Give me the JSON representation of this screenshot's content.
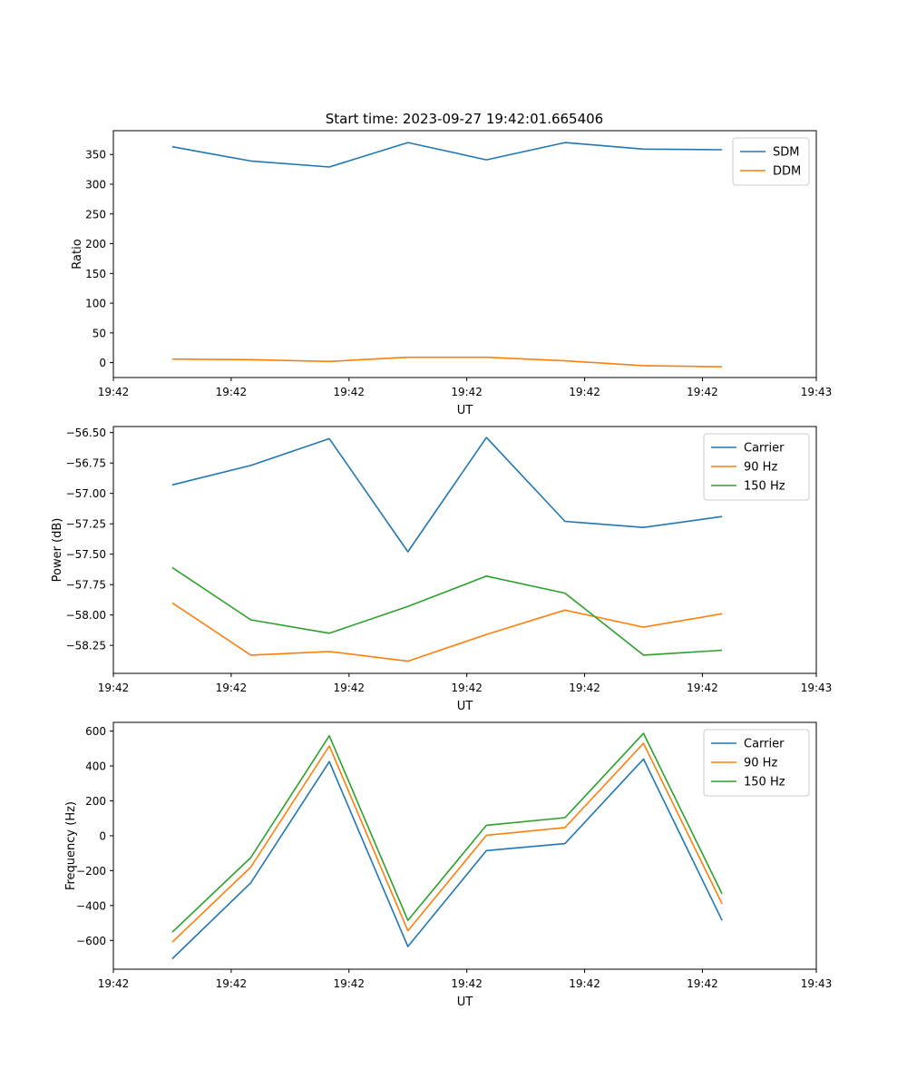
{
  "figure_title": "Start time: 2023-09-27 19:42:01.665406",
  "colors": {
    "blue": "#1f77b4",
    "orange": "#ff7f0e",
    "green": "#2ca02c"
  },
  "chart_data": [
    {
      "type": "line",
      "xlabel": "UT",
      "ylabel": "Ratio",
      "x": [
        0,
        1,
        2,
        3,
        4,
        5,
        6,
        7
      ],
      "xlim": [
        -0.75,
        8.2
      ],
      "ylim": [
        -25,
        390
      ],
      "xticks": [
        -0.75,
        0.75,
        2.25,
        3.75,
        5.25,
        6.75,
        8.2
      ],
      "xticklabels": [
        "19:42",
        "19:42",
        "19:42",
        "19:42",
        "19:42",
        "19:42",
        "19:43"
      ],
      "yticks": [
        0,
        50,
        100,
        150,
        200,
        250,
        300,
        350
      ],
      "yticklabels": [
        "0",
        "50",
        "100",
        "150",
        "200",
        "250",
        "300",
        "350"
      ],
      "legend_position": "top-right",
      "series": [
        {
          "name": "SDM",
          "color": "#1f77b4",
          "values": [
            363,
            339,
            329,
            370,
            341,
            370,
            359,
            358
          ]
        },
        {
          "name": "DDM",
          "color": "#ff7f0e",
          "values": [
            6,
            5,
            2,
            9,
            9,
            3,
            -5,
            -7
          ]
        }
      ]
    },
    {
      "type": "line",
      "xlabel": "UT",
      "ylabel": "Power (dB)",
      "x": [
        0,
        1,
        2,
        3,
        4,
        5,
        6,
        7
      ],
      "xlim": [
        -0.75,
        8.2
      ],
      "ylim": [
        -58.48,
        -56.45
      ],
      "xticks": [
        -0.75,
        0.75,
        2.25,
        3.75,
        5.25,
        6.75,
        8.2
      ],
      "xticklabels": [
        "19:42",
        "19:42",
        "19:42",
        "19:42",
        "19:42",
        "19:42",
        "19:43"
      ],
      "yticks": [
        -58.25,
        -58.0,
        -57.75,
        -57.5,
        -57.25,
        -57.0,
        -56.75,
        -56.5
      ],
      "yticklabels": [
        "−58.25",
        "−58.00",
        "−57.75",
        "−57.50",
        "−57.25",
        "−57.00",
        "−56.75",
        "−56.50"
      ],
      "legend_position": "top-right",
      "series": [
        {
          "name": "Carrier",
          "color": "#1f77b4",
          "values": [
            -56.93,
            -56.77,
            -56.55,
            -57.48,
            -56.54,
            -57.23,
            -57.28,
            -57.19
          ]
        },
        {
          "name": "90 Hz",
          "color": "#ff7f0e",
          "values": [
            -57.9,
            -58.33,
            -58.3,
            -58.38,
            -58.16,
            -57.96,
            -58.1,
            -57.99
          ]
        },
        {
          "name": "150 Hz",
          "color": "#2ca02c",
          "values": [
            -57.61,
            -58.04,
            -58.15,
            -57.93,
            -57.68,
            -57.82,
            -58.33,
            -58.29
          ]
        }
      ]
    },
    {
      "type": "line",
      "xlabel": "UT",
      "ylabel": "Frequency (Hz)",
      "x": [
        0,
        1,
        2,
        3,
        4,
        5,
        6,
        7
      ],
      "xlim": [
        -0.75,
        8.2
      ],
      "ylim": [
        -765,
        650
      ],
      "xticks": [
        -0.75,
        0.75,
        2.25,
        3.75,
        5.25,
        6.75,
        8.2
      ],
      "xticklabels": [
        "19:42",
        "19:42",
        "19:42",
        "19:42",
        "19:42",
        "19:42",
        "19:43"
      ],
      "yticks": [
        -600,
        -400,
        -200,
        0,
        200,
        400,
        600
      ],
      "yticklabels": [
        "−600",
        "−400",
        "−200",
        "0",
        "200",
        "400",
        "600"
      ],
      "legend_position": "top-right",
      "series": [
        {
          "name": "Carrier",
          "color": "#1f77b4",
          "values": [
            -705,
            -270,
            425,
            -635,
            -85,
            -45,
            440,
            -485
          ]
        },
        {
          "name": "90 Hz",
          "color": "#ff7f0e",
          "values": [
            -610,
            -180,
            515,
            -545,
            3,
            47,
            530,
            -390
          ]
        },
        {
          "name": "150 Hz",
          "color": "#2ca02c",
          "values": [
            -553,
            -125,
            573,
            -485,
            60,
            104,
            587,
            -333
          ]
        }
      ]
    }
  ]
}
